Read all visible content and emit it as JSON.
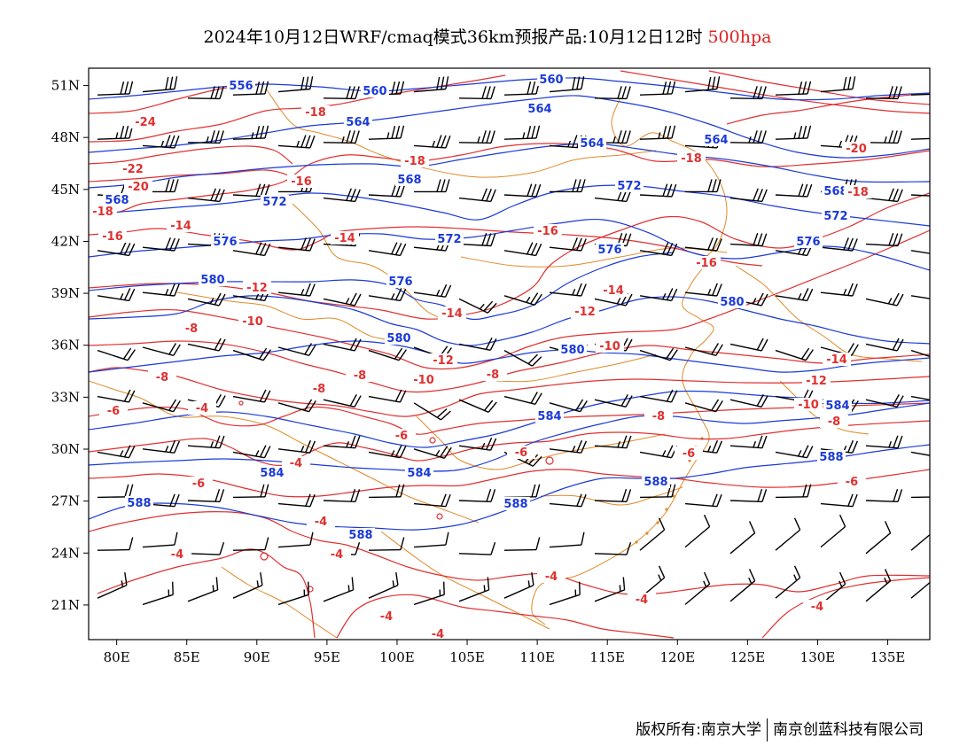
{
  "title": {
    "main": "2024年10月12日WRF/cmaq模式36km预报产品:10月12日12时",
    "level": "500hpa"
  },
  "colors": {
    "height_contour": "#1a3ad8",
    "temperature_contour": "#e03030",
    "coastline": "#e08a2a",
    "wind_barb": "#000000",
    "frame": "#000000"
  },
  "map": {
    "lon_range": [
      78,
      138
    ],
    "lat_range": [
      19,
      52
    ],
    "lon_ticks": [
      "80E",
      "85E",
      "90E",
      "95E",
      "100E",
      "105E",
      "110E",
      "115E",
      "120E",
      "125E",
      "130E",
      "135E"
    ],
    "lat_ticks": [
      "51N",
      "48N",
      "45N",
      "42N",
      "39N",
      "36N",
      "33N",
      "30N",
      "27N",
      "24N",
      "21N"
    ],
    "height_labels": [
      "556",
      "560",
      "564",
      "568",
      "572",
      "576",
      "580",
      "584",
      "588"
    ],
    "temperature_labels": [
      "-24",
      "-22",
      "-20",
      "-18",
      "-16",
      "-14",
      "-12",
      "-10",
      "-8",
      "-6",
      "-4"
    ]
  },
  "footer": {
    "copyright": "版权所有:南京大学",
    "company": "南京创蓝科技有限公司"
  }
}
